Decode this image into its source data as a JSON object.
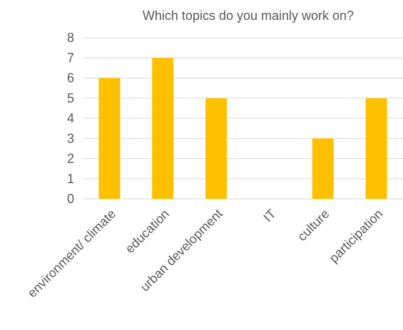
{
  "chart_data": {
    "type": "bar",
    "title": "Which topics do you mainly work on?",
    "xlabel": "",
    "ylabel": "",
    "categories": [
      "environment/ climate",
      "education",
      "urban development",
      "IT",
      "culture",
      "participation"
    ],
    "values": [
      6,
      7,
      5,
      0,
      3,
      5
    ],
    "ylim": [
      0,
      8
    ],
    "yticks": [
      "0",
      "1",
      "2",
      "3",
      "4",
      "5",
      "6",
      "7",
      "8"
    ],
    "grid": true,
    "legend": "none",
    "colors": {
      "bar": "#FFC000",
      "text": "#595959",
      "grid": "#D9D9D9"
    }
  }
}
